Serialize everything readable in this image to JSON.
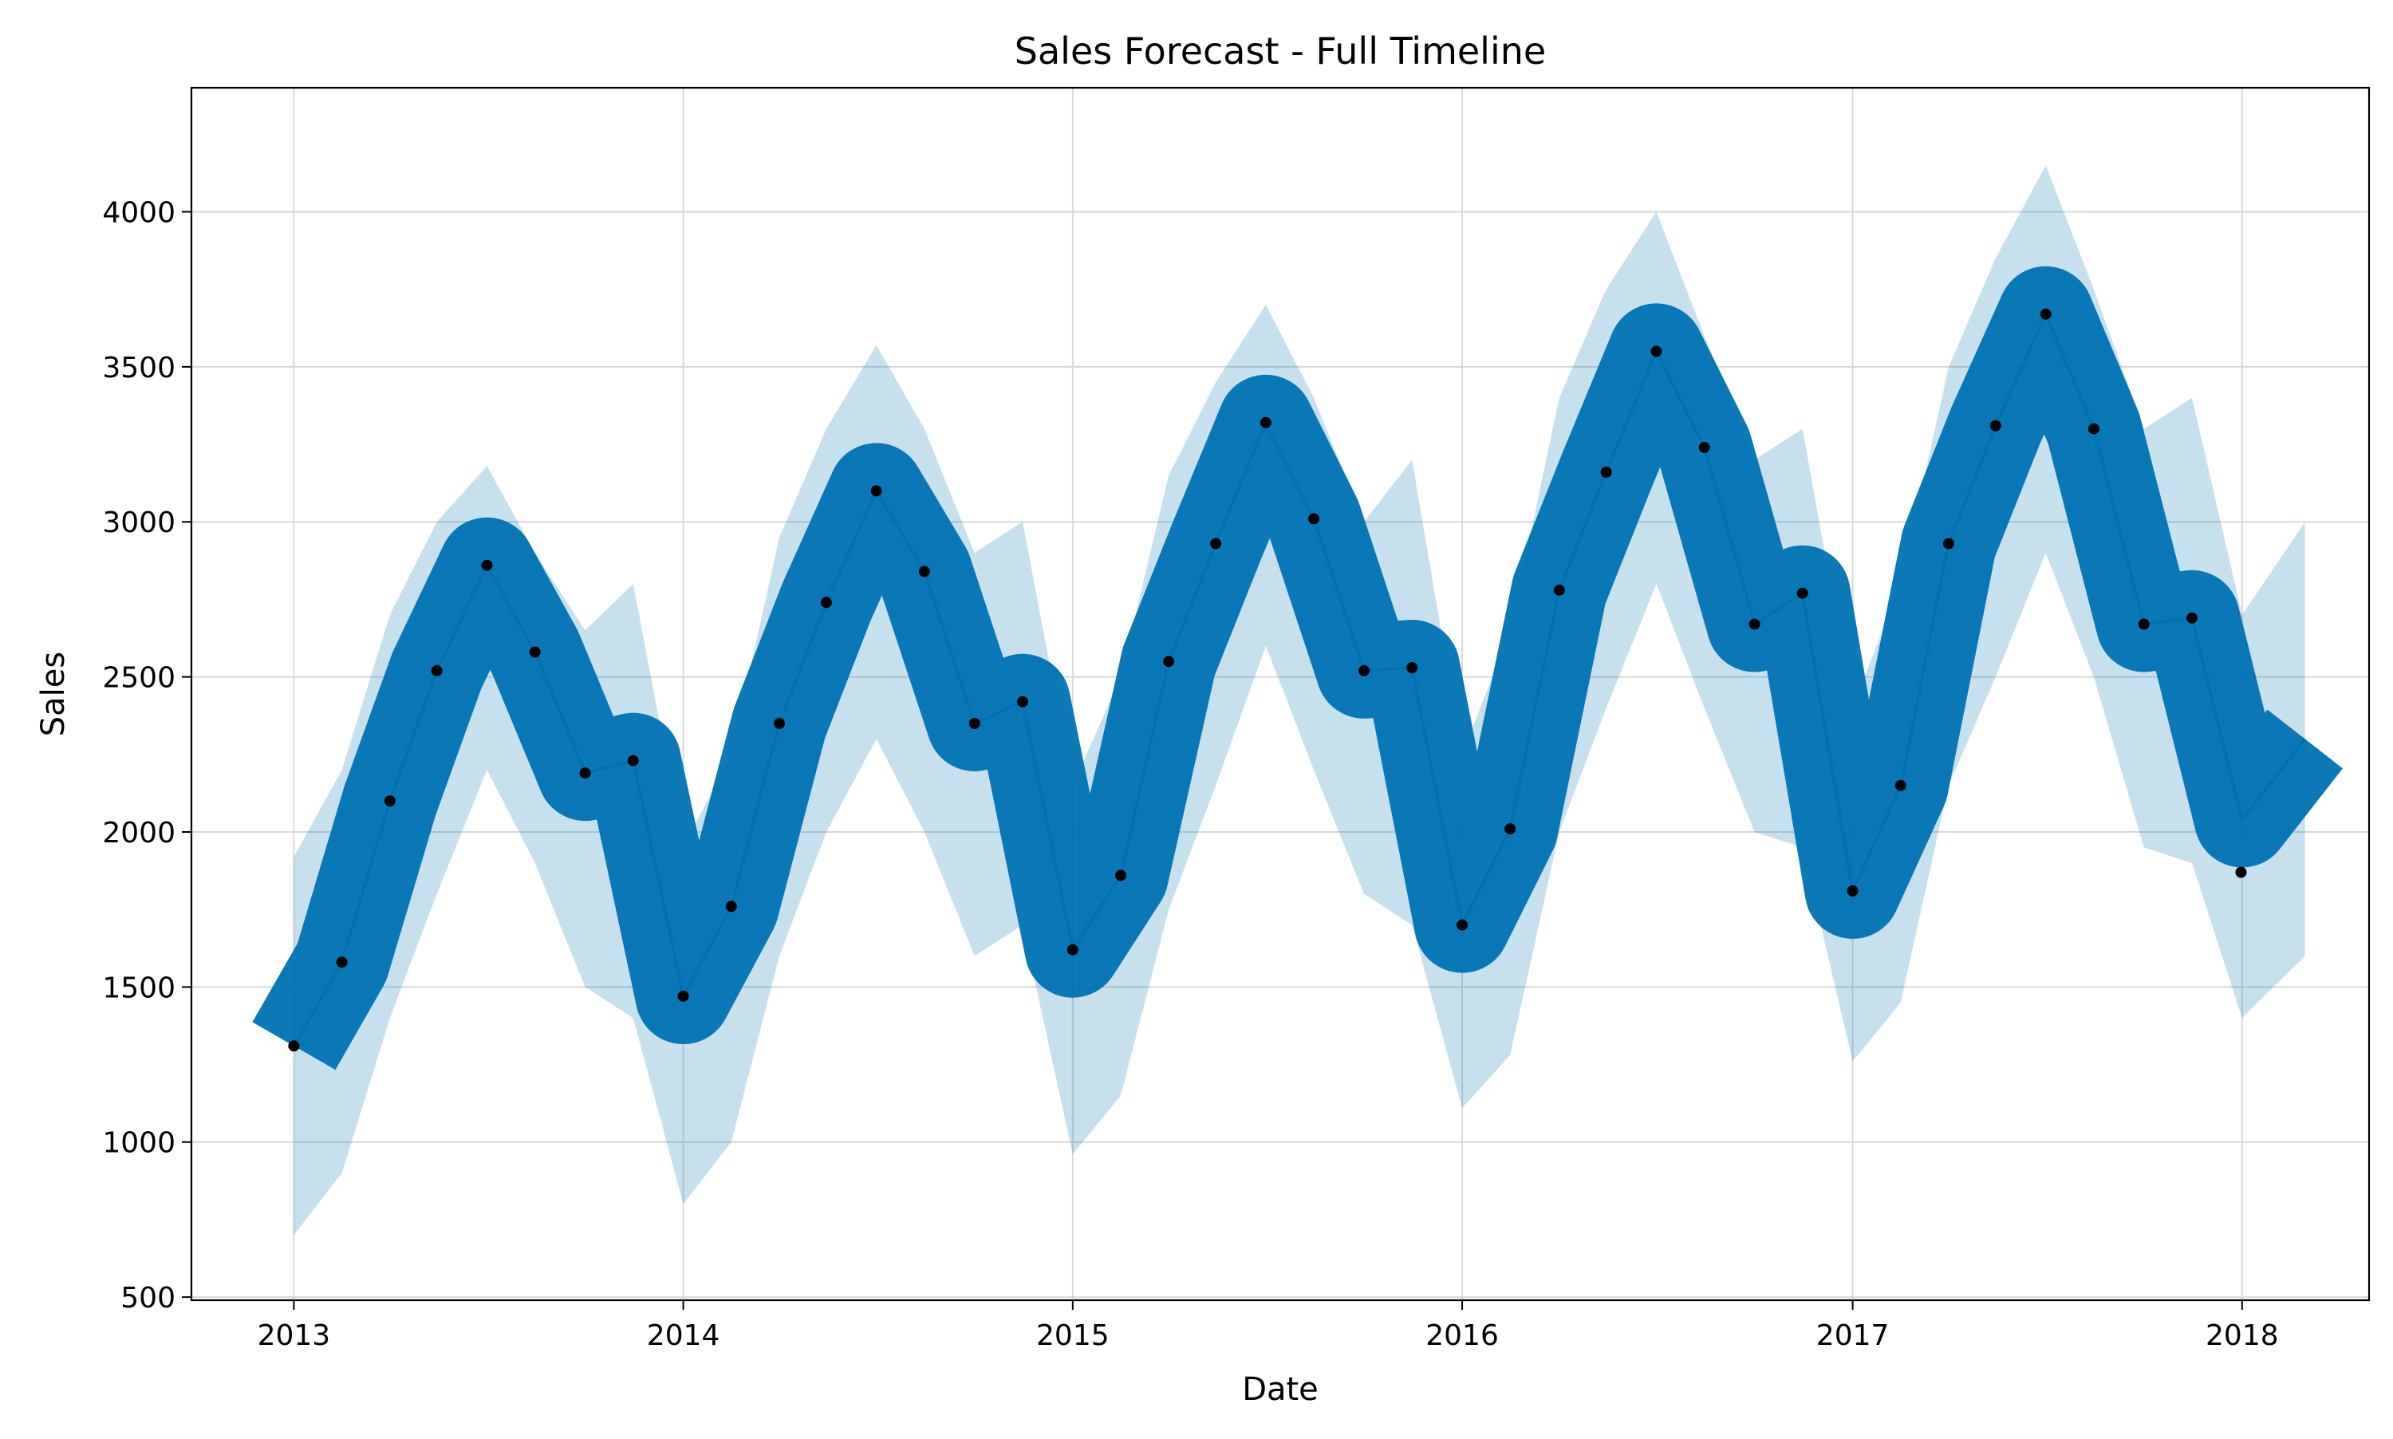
{
  "chart_data": {
    "type": "line",
    "title": "Sales Forecast - Full Timeline",
    "xlabel": "Date",
    "ylabel": "Sales",
    "x_range": [
      "2012-09-27",
      "2018-04-30"
    ],
    "ylim": [
      490,
      4400
    ],
    "x_ticks": [
      {
        "date": "2013-01-01",
        "label": "2013"
      },
      {
        "date": "2014-01-01",
        "label": "2014"
      },
      {
        "date": "2015-01-01",
        "label": "2015"
      },
      {
        "date": "2016-01-01",
        "label": "2016"
      },
      {
        "date": "2017-01-01",
        "label": "2017"
      },
      {
        "date": "2018-01-01",
        "label": "2018"
      }
    ],
    "y_ticks": [
      500,
      1000,
      1500,
      2000,
      2500,
      3000,
      3500,
      4000
    ],
    "grid": true,
    "colors": {
      "forecast_line": "#0072B2",
      "uncertainty_band": "#0072B2",
      "observed_points": "#000000",
      "grid": "#d9d9d9"
    },
    "series": [
      {
        "style": "black-points",
        "x": [
          "2013-01-01",
          "2013-02-15",
          "2013-04-01",
          "2013-05-15",
          "2013-07-01",
          "2013-08-15",
          "2013-10-01",
          "2013-11-15",
          "2014-01-01",
          "2014-02-15",
          "2014-04-01",
          "2014-05-15",
          "2014-07-01",
          "2014-08-15",
          "2014-10-01",
          "2014-11-15",
          "2015-01-01",
          "2015-02-15",
          "2015-04-01",
          "2015-05-15",
          "2015-07-01",
          "2015-08-15",
          "2015-10-01",
          "2015-11-15",
          "2016-01-01",
          "2016-02-15",
          "2016-04-01",
          "2016-05-15",
          "2016-07-01",
          "2016-08-15",
          "2016-10-01",
          "2016-11-15",
          "2017-01-01",
          "2017-02-15",
          "2017-04-01",
          "2017-05-15",
          "2017-07-01",
          "2017-08-15",
          "2017-10-01",
          "2017-11-15",
          "2017-12-31"
        ],
        "y": [
          1310,
          1580,
          2100,
          2520,
          2860,
          2580,
          2190,
          2230,
          1470,
          1760,
          2350,
          2740,
          3100,
          2840,
          2350,
          2420,
          1620,
          1860,
          2550,
          2930,
          3320,
          3010,
          2520,
          2530,
          1700,
          2010,
          2780,
          3160,
          3550,
          3240,
          2670,
          2770,
          1810,
          2150,
          2930,
          3310,
          3670,
          3300,
          2670,
          2690,
          1870
        ]
      },
      {
        "style": "blue-line",
        "x": [
          "2013-01-01",
          "2013-02-15",
          "2013-04-01",
          "2013-05-15",
          "2013-07-01",
          "2013-08-15",
          "2013-10-01",
          "2013-11-15",
          "2014-01-01",
          "2014-02-15",
          "2014-04-01",
          "2014-05-15",
          "2014-07-01",
          "2014-08-15",
          "2014-10-01",
          "2014-11-15",
          "2015-01-01",
          "2015-02-15",
          "2015-04-01",
          "2015-05-15",
          "2015-07-01",
          "2015-08-15",
          "2015-10-01",
          "2015-11-15",
          "2016-01-01",
          "2016-02-15",
          "2016-04-01",
          "2016-05-15",
          "2016-07-01",
          "2016-08-15",
          "2016-10-01",
          "2016-11-15",
          "2017-01-01",
          "2017-02-15",
          "2017-04-01",
          "2017-05-15",
          "2017-07-01",
          "2017-08-15",
          "2017-10-01",
          "2017-11-15",
          "2018-01-01",
          "2018-03-01"
        ],
        "y": [
          1310,
          1580,
          2100,
          2520,
          2860,
          2580,
          2190,
          2230,
          1470,
          1760,
          2350,
          2740,
          3100,
          2840,
          2350,
          2420,
          1620,
          1860,
          2550,
          2930,
          3320,
          3010,
          2520,
          2530,
          1700,
          2010,
          2780,
          3160,
          3550,
          3240,
          2670,
          2770,
          1810,
          2150,
          2930,
          3310,
          3670,
          3300,
          2670,
          2690,
          2040,
          2300
        ]
      },
      {
        "style": "light-blue-band",
        "x": [
          "2013-01-01",
          "2013-02-15",
          "2013-04-01",
          "2013-05-15",
          "2013-07-01",
          "2013-08-15",
          "2013-10-01",
          "2013-11-15",
          "2014-01-01",
          "2014-02-15",
          "2014-04-01",
          "2014-05-15",
          "2014-07-01",
          "2014-08-15",
          "2014-10-01",
          "2014-11-15",
          "2015-01-01",
          "2015-02-15",
          "2015-04-01",
          "2015-05-15",
          "2015-07-01",
          "2015-08-15",
          "2015-10-01",
          "2015-11-15",
          "2016-01-01",
          "2016-02-15",
          "2016-04-01",
          "2016-05-15",
          "2016-07-01",
          "2016-08-15",
          "2016-10-01",
          "2016-11-15",
          "2017-01-01",
          "2017-02-15",
          "2017-04-01",
          "2017-05-15",
          "2017-07-01",
          "2017-08-15",
          "2017-10-01",
          "2017-11-15",
          "2018-01-01",
          "2018-03-01"
        ],
        "y_lower": [
          700,
          900,
          1400,
          1800,
          2200,
          1900,
          1500,
          1400,
          800,
          1000,
          1600,
          2000,
          2300,
          2000,
          1600,
          1700,
          960,
          1150,
          1750,
          2150,
          2600,
          2200,
          1800,
          1700,
          1110,
          1280,
          2000,
          2400,
          2800,
          2400,
          2000,
          1950,
          1260,
          1450,
          2150,
          2500,
          2900,
          2500,
          1950,
          1900,
          1400,
          1600
        ],
        "y_upper": [
          1920,
          2200,
          2700,
          3000,
          3180,
          2900,
          2650,
          2800,
          1950,
          2250,
          2950,
          3300,
          3570,
          3300,
          2900,
          3000,
          2150,
          2500,
          3150,
          3450,
          3700,
          3400,
          3000,
          3200,
          2250,
          2650,
          3400,
          3750,
          4000,
          3600,
          3200,
          3300,
          2400,
          2800,
          3500,
          3850,
          4150,
          3750,
          3300,
          3400,
          2700,
          3000
        ]
      }
    ]
  }
}
